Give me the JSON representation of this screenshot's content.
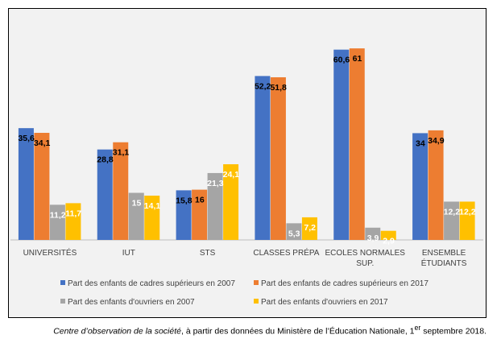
{
  "chart_data": {
    "type": "bar",
    "categories": [
      [
        "UNIVERSITÉS"
      ],
      [
        "IUT"
      ],
      [
        "STS"
      ],
      [
        "CLASSES PRÉPA"
      ],
      [
        "ECOLES NORMALES",
        "SUP."
      ],
      [
        "ENSEMBLE",
        "ÉTUDIANTS"
      ]
    ],
    "series": [
      {
        "name": "Part des enfants de cadres supérieurs en 2007",
        "color": "#4472c4",
        "values": [
          35.6,
          28.8,
          15.8,
          52.2,
          60.6,
          34
        ],
        "labels": [
          "35,6",
          "28,8",
          "15,8",
          "52,2",
          "60,6",
          "34"
        ]
      },
      {
        "name": "Part des enfants de cadres supérieurs en 2017",
        "color": "#ed7d31",
        "values": [
          34.1,
          31.1,
          16,
          51.8,
          61,
          34.9
        ],
        "labels": [
          "34,1",
          "31,1",
          "16",
          "51,8",
          "61",
          "34,9"
        ]
      },
      {
        "name": "Part des enfants d'ouvriers en 2007",
        "color": "#a5a5a5",
        "values": [
          11.2,
          15,
          21.3,
          5.3,
          3.9,
          12.2
        ],
        "labels": [
          "11,2",
          "15",
          "21,3",
          "5,3",
          "3,9",
          "12,2"
        ]
      },
      {
        "name": "Part des enfants d'ouvriers en 2017",
        "color": "#ffc000",
        "values": [
          11.7,
          14.1,
          24.1,
          7.2,
          2.9,
          12.2
        ],
        "labels": [
          "11,7",
          "14,1",
          "24,1",
          "7,2",
          "2,9",
          "12,2"
        ]
      }
    ],
    "ylim": [
      0,
      70
    ],
    "grid": false,
    "legend_position": "bottom"
  },
  "caption": {
    "source_italic": "Centre d’observation de la société",
    "text_before_sup": ", à partir des données du Ministère de l’Éducation Nationale, 1",
    "superscript": "er",
    "text_after_sup": " septembre 2018."
  }
}
